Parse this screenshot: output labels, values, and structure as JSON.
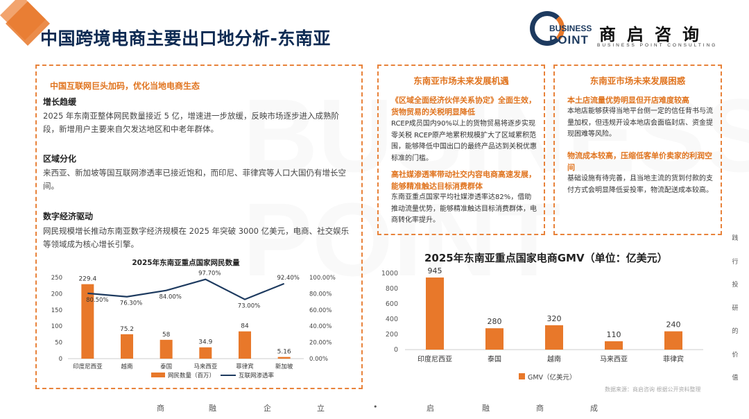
{
  "title": "中国跨境电商主要出口地分析-东南亚",
  "logo": {
    "line1": "BUSINESS",
    "line2": "POINT",
    "cn": "商启咨询",
    "en": "BUSINESS POINT CONSULTING"
  },
  "left_box": {
    "headline": "中国互联网巨头加码，优化当地电商生态",
    "sections": [
      {
        "title": "增长趋缓",
        "text": "2025 年东南亚整体网民数量接近 5 亿，增速进一步放缓，反映市场逐步进入成熟阶段，新增用户主要来自欠发达地区和中老年群体。"
      },
      {
        "title": "区域分化",
        "text": "来西亚、新加坡等国互联网渗透率已接近饱和，而印尼、菲律宾等人口大国仍有增长空间。"
      },
      {
        "title": "数字经济驱动",
        "text": "网民规模增长推动东南亚数字经济规模在 2025 年突破 3000 亿美元，电商、社交娱乐等领域成为核心增长引擎。"
      }
    ]
  },
  "opportunities": {
    "title": "东南亚市场未来发展机遇",
    "items": [
      {
        "sub": "《区域全面经济伙伴关系协定》全面生效，货物贸易的关税明显降低",
        "text": "RCEP成员国内90%以上的货物贸易将逐步实现零关税 RCEP原产地累积规模扩大了区域累积范围，能够降低中国出口的最终产品达到关税优惠标准的门槛。"
      },
      {
        "sub": "高社媒渗透率带动社交内容电商高速发展，能够精准触达目标消费群体",
        "text": "东南亚重点国家平均社媒渗透率达82%，借助推动流量优势，能够精准触达目标消费群体，电商转化率提升。"
      }
    ]
  },
  "difficulties": {
    "title": "东南亚市场未来发展困惑",
    "items": [
      {
        "sub": "本土店流量优势明显但开店难度较高",
        "text": "本地店能够获得当地平台侧一定的信任背书与流量加权，但违规开设本地店会面临封店、资金提现困难等风险。"
      },
      {
        "sub": "物流成本较高，压缩低客单价卖家的利润空间",
        "text": "基础设施有待完善，且当地主流的货到付款的支付方式会明显降低妥投率，物流配送成本较高。"
      }
    ]
  },
  "chart_data": [
    {
      "type": "bar",
      "title": "2025年东南亚重点国家网民数量",
      "categories": [
        "印度尼西亚",
        "越南",
        "泰国",
        "马来西亚",
        "菲律宾",
        "新加坡"
      ],
      "series": [
        {
          "name": "网民数量（百万）",
          "type": "bar",
          "values": [
            229.4,
            75.2,
            58,
            34.9,
            84,
            5.16
          ],
          "labels": [
            "229.4",
            "75.2",
            "58",
            "34.9",
            "84",
            "5.16"
          ],
          "color": "#e8782a"
        },
        {
          "name": "互联网渗透率",
          "type": "line",
          "values": [
            80.5,
            76.3,
            84.0,
            97.7,
            73.0,
            92.4
          ],
          "labels": [
            "80.50%",
            "76.30%",
            "84.00%",
            "97.70%",
            "73.00%",
            "92.40%"
          ],
          "color": "#1d3a5f"
        }
      ],
      "y_ticks": [
        "0",
        "50",
        "100",
        "150",
        "200",
        "250"
      ],
      "y2_ticks": [
        "0.00%",
        "20.00%",
        "40.00%",
        "60.00%",
        "80.00%",
        "100.00%"
      ],
      "ylim": [
        0,
        250
      ],
      "y2lim": [
        0,
        100
      ]
    },
    {
      "type": "bar",
      "title": "2025年东南亚重点国家电商GMV（单位：亿美元）",
      "categories": [
        "印度尼西亚",
        "泰国",
        "越南",
        "马来西亚",
        "菲律宾"
      ],
      "series": [
        {
          "name": "GMV（亿美元）",
          "values": [
            945,
            280,
            320,
            110,
            240
          ],
          "color": "#e8782a"
        }
      ],
      "y_ticks": [
        "0",
        "200",
        "400",
        "600",
        "800",
        "1000"
      ],
      "ylim": [
        0,
        1000
      ]
    }
  ],
  "source": "数据来源：商启咨询 根据公开资料整理",
  "side_text": [
    "践",
    "行",
    "投",
    "研",
    "的",
    "价",
    "值"
  ],
  "footer": {
    "left": [
      "商",
      "融",
      "企",
      "立"
    ],
    "dot": "•",
    "right": [
      "启",
      "融",
      "商",
      "成"
    ]
  },
  "watermark": "BUSINESS POINT",
  "colors": {
    "accent": "#e8782a",
    "navy": "#1d3a5f"
  }
}
